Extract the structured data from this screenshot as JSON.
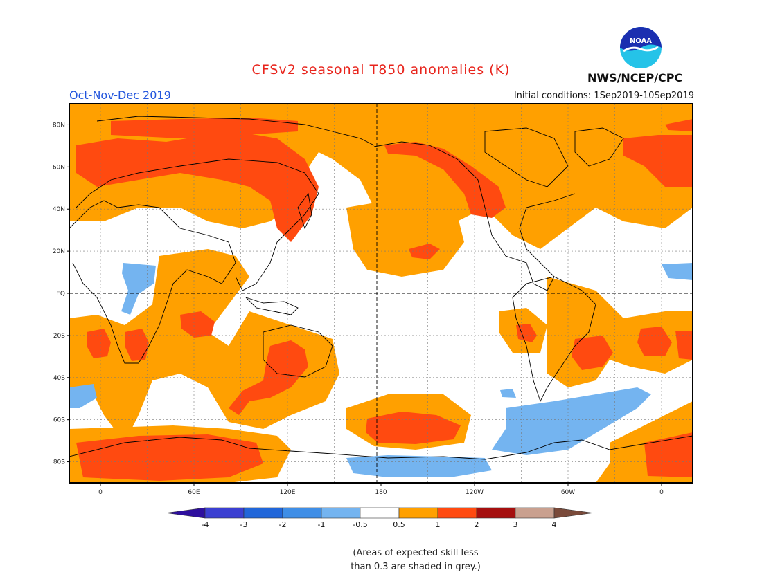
{
  "title": "CFSv2 seasonal T850 anomalies (K)",
  "season": "Oct-Nov-Dec 2019",
  "initial_conditions": "Initial conditions: 1Sep2019-10Sep2019",
  "agency": "NWS/NCEP/CPC",
  "logo_text": "NOAA",
  "lat_labels": [
    "80N",
    "60N",
    "40N",
    "20N",
    "EQ",
    "20S",
    "40S",
    "60S",
    "80S"
  ],
  "lon_labels": [
    "0",
    "60E",
    "120E",
    "180",
    "120W",
    "60W",
    "0"
  ],
  "legend": {
    "ticks": [
      "-4",
      "-3",
      "-2",
      "-1",
      "-0.5",
      "0.5",
      "1",
      "2",
      "3",
      "4"
    ],
    "bins": [
      {
        "range": "< -4",
        "color": "#2e0f9e"
      },
      {
        "range": "-4 to -3",
        "color": "#3b3fd1"
      },
      {
        "range": "-3 to -2",
        "color": "#2166d9"
      },
      {
        "range": "-2 to -1",
        "color": "#3f8ee6"
      },
      {
        "range": "-1 to -0.5",
        "color": "#74b4f0"
      },
      {
        "range": "-0.5 to 0.5",
        "color": "#ffffff"
      },
      {
        "range": "0.5 to 1",
        "color": "#ffa000"
      },
      {
        "range": "1 to 2",
        "color": "#ff4a10"
      },
      {
        "range": "2 to 3",
        "color": "#a50f0f"
      },
      {
        "range": "3 to 4",
        "color": "#c9a08f"
      },
      {
        "range": "> 4",
        "color": "#7a4a3a"
      }
    ]
  },
  "note_line1": "(Areas of expected skill less",
  "note_line2": "than 0.3 are shaded in grey.)",
  "colors": {
    "orange": "#ffa000",
    "red": "#ff4a10",
    "blue": "#74b4f0",
    "title": "#e8241c",
    "season": "#2255dd"
  }
}
